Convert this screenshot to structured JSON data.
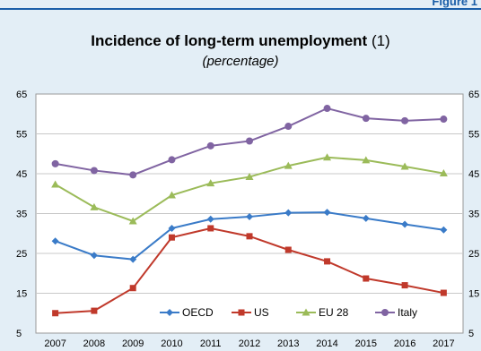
{
  "figure_label": "Figure 1",
  "title_bold": "Incidence of long-term unemployment",
  "title_note": "(1)",
  "subtitle": "(percentage)",
  "colors": {
    "background": "#e3eef6",
    "accent": "#1a5ea8"
  },
  "chart_data": {
    "type": "line",
    "title": "Incidence of long-term unemployment (1)",
    "subtitle": "(percentage)",
    "xlabel": "",
    "ylabel": "",
    "categories": [
      "2007",
      "2008",
      "2009",
      "2010",
      "2011",
      "2012",
      "2013",
      "2014",
      "2015",
      "2016",
      "2017"
    ],
    "ylim": [
      5,
      65
    ],
    "yticks": [
      5,
      15,
      25,
      35,
      45,
      55,
      65
    ],
    "grid": true,
    "legend": "bottom-center",
    "series": [
      {
        "name": "OECD",
        "color": "#3a7bc8",
        "marker": "diamond",
        "values": [
          28.1,
          24.5,
          23.5,
          31.3,
          33.6,
          34.2,
          35.2,
          35.3,
          33.8,
          32.3,
          30.9
        ]
      },
      {
        "name": "US",
        "color": "#c0392b",
        "marker": "square",
        "values": [
          10.0,
          10.6,
          16.3,
          29.0,
          31.3,
          29.3,
          25.9,
          23.0,
          18.7,
          17.0,
          15.1
        ]
      },
      {
        "name": "EU 28",
        "color": "#9bbb59",
        "marker": "triangle",
        "values": [
          42.3,
          36.6,
          33.1,
          39.6,
          42.6,
          44.2,
          47.0,
          49.1,
          48.4,
          46.8,
          45.1
        ]
      },
      {
        "name": "Italy",
        "color": "#8064a2",
        "marker": "circle",
        "values": [
          47.5,
          45.8,
          44.7,
          48.5,
          52.0,
          53.2,
          56.9,
          61.4,
          58.9,
          58.3,
          58.7
        ]
      }
    ]
  }
}
